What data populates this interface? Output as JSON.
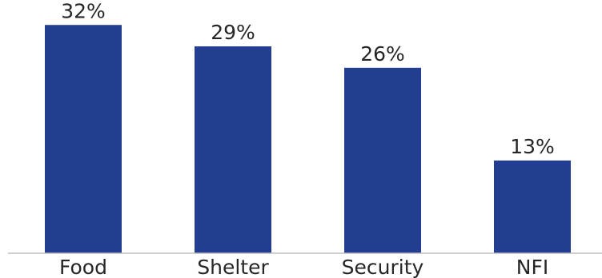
{
  "chart_data": {
    "type": "bar",
    "title": "",
    "xlabel": "",
    "ylabel": "",
    "categories": [
      "Food",
      "Shelter",
      "Security",
      "NFI"
    ],
    "values": [
      32,
      29,
      26,
      13
    ],
    "data_labels": [
      "32%",
      "29%",
      "26%",
      "13%"
    ],
    "ylim": [
      0,
      35.5
    ],
    "grid": false,
    "legend": "none",
    "bar_color": "#233E91",
    "axis_color": "#BFBFBF",
    "text_color": "#262626"
  }
}
